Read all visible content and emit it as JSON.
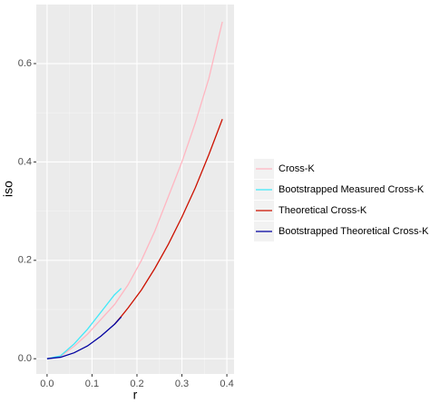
{
  "chart_data": {
    "type": "line",
    "x_label": "r",
    "y_label": "iso",
    "x": [
      0,
      0.03,
      0.06,
      0.09,
      0.12,
      0.15,
      0.165,
      0.18,
      0.21,
      0.24,
      0.27,
      0.3,
      0.33,
      0.36,
      0.39
    ],
    "series": [
      {
        "name": "Cross-K",
        "color": "#ffb6c1",
        "values": [
          0,
          0.005,
          0.025,
          0.05,
          0.08,
          0.11,
          0.13,
          0.15,
          0.2,
          0.26,
          0.33,
          0.4,
          0.48,
          0.57,
          0.685
        ]
      },
      {
        "name": "Bootstrapped Measured Cross-K",
        "color": "#40e8f8",
        "values": [
          0,
          0.006,
          0.03,
          0.06,
          0.095,
          0.13,
          0.143,
          null,
          null,
          null,
          null,
          null,
          null,
          null,
          null
        ]
      },
      {
        "name": "Theoretical Cross-K",
        "color": "#cc1100",
        "values": [
          null,
          null,
          null,
          null,
          null,
          0.07,
          0.086,
          0.103,
          0.14,
          0.184,
          0.233,
          0.288,
          0.348,
          0.415,
          0.487
        ]
      },
      {
        "name": "Bootstrapped Theoretical Cross-K",
        "color": "#0000a0",
        "values": [
          0,
          0.003,
          0.012,
          0.026,
          0.046,
          0.07,
          0.085,
          null,
          null,
          null,
          null,
          null,
          null,
          null,
          null
        ]
      }
    ],
    "xlim": [
      -0.024,
      0.416
    ],
    "ylim": [
      -0.031,
      0.72
    ],
    "xticks": [
      {
        "value": 0,
        "label": "0.0"
      },
      0.1,
      0.2,
      0.3,
      {
        "value": 0.4,
        "label": "0.4"
      }
    ],
    "yticks": [
      {
        "value": 0,
        "label": "0.0"
      },
      0.2,
      0.4,
      0.6
    ],
    "grid": true,
    "legend": "right"
  }
}
